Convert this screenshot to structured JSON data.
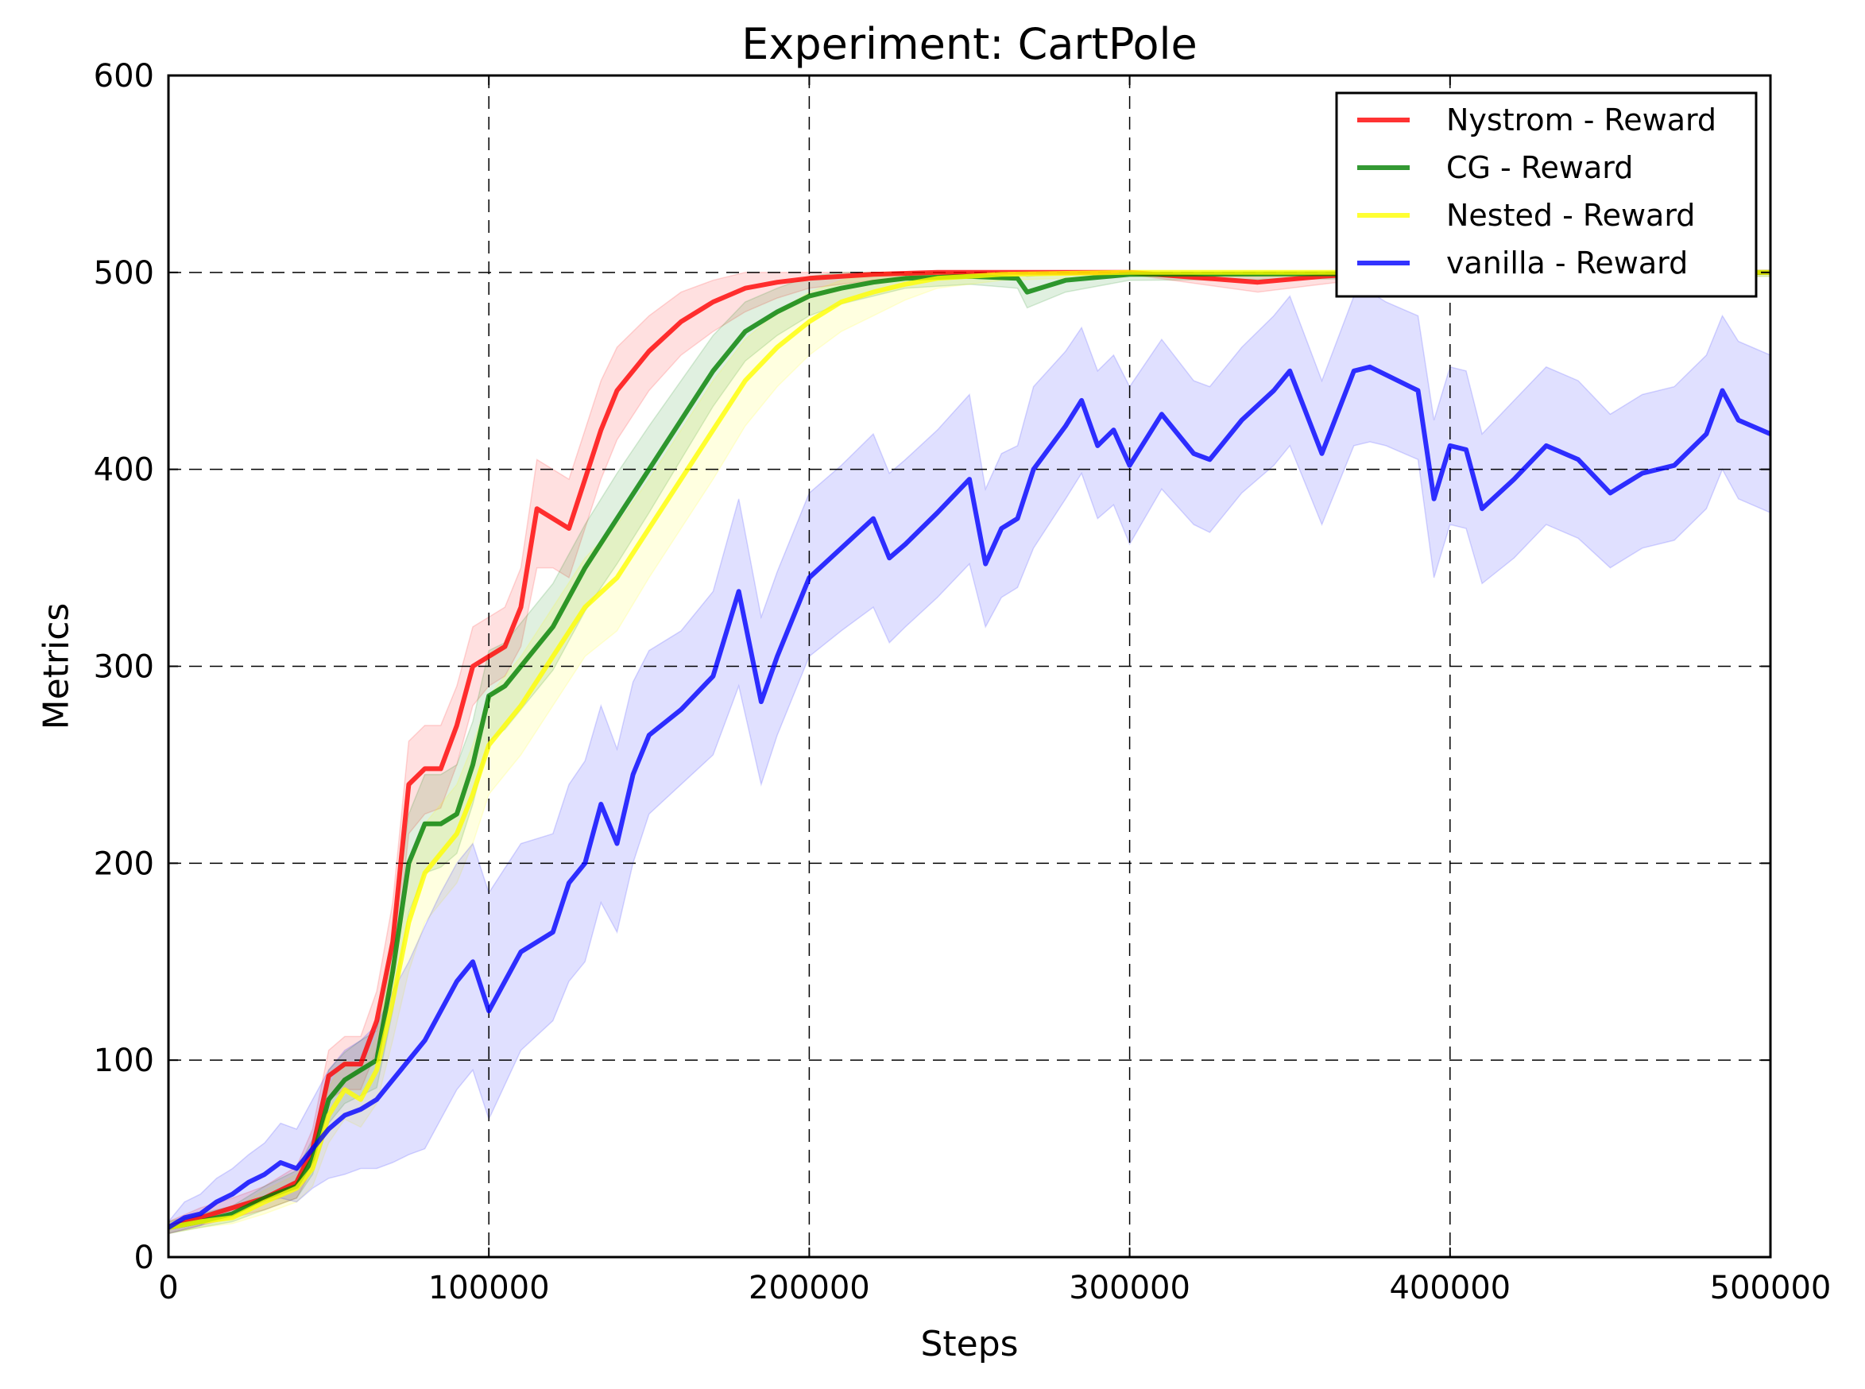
{
  "chart_data": {
    "type": "line",
    "title": "Experiment: CartPole",
    "xlabel": "Steps",
    "ylabel": "Metrics",
    "xlim": [
      0,
      500000
    ],
    "ylim": [
      0,
      600
    ],
    "xticks": [
      0,
      100000,
      200000,
      300000,
      400000,
      500000
    ],
    "xtick_labels": [
      "0",
      "100000",
      "200000",
      "300000",
      "400000",
      "500000"
    ],
    "yticks": [
      0,
      100,
      200,
      300,
      400,
      500,
      600
    ],
    "ytick_labels": [
      "0",
      "100",
      "200",
      "300",
      "400",
      "500",
      "600"
    ],
    "grid": true,
    "legend_position": "top-right",
    "series": [
      {
        "name": "Nystrom - Reward",
        "color": "#ff0000",
        "x": [
          0,
          10000,
          20000,
          30000,
          40000,
          45000,
          50000,
          55000,
          60000,
          65000,
          70000,
          75000,
          80000,
          85000,
          90000,
          95000,
          100000,
          105000,
          110000,
          115000,
          120000,
          125000,
          130000,
          135000,
          140000,
          150000,
          160000,
          170000,
          180000,
          190000,
          200000,
          220000,
          240000,
          300000,
          340000,
          360000,
          380000,
          400000,
          500000
        ],
        "y": [
          15,
          20,
          25,
          30,
          38,
          55,
          92,
          98,
          98,
          120,
          160,
          240,
          248,
          248,
          270,
          300,
          305,
          310,
          330,
          380,
          375,
          370,
          395,
          420,
          440,
          460,
          475,
          485,
          492,
          495,
          497,
          499,
          500,
          500,
          495,
          498,
          500,
          500,
          500
        ],
        "band_low": [
          12,
          16,
          20,
          24,
          30,
          45,
          80,
          85,
          85,
          105,
          140,
          215,
          225,
          228,
          250,
          280,
          290,
          295,
          310,
          350,
          350,
          345,
          370,
          395,
          415,
          440,
          458,
          470,
          480,
          487,
          492,
          496,
          498,
          499,
          490,
          494,
          498,
          499,
          499
        ],
        "band_high": [
          18,
          25,
          30,
          36,
          46,
          65,
          105,
          112,
          112,
          135,
          180,
          262,
          270,
          270,
          290,
          320,
          325,
          330,
          350,
          405,
          400,
          395,
          420,
          445,
          462,
          478,
          490,
          496,
          500,
          500,
          500,
          500,
          500,
          500,
          500,
          500,
          500,
          500,
          500
        ]
      },
      {
        "name": "CG - Reward",
        "color": "#008000",
        "x": [
          0,
          10000,
          20000,
          30000,
          40000,
          45000,
          50000,
          55000,
          60000,
          65000,
          70000,
          75000,
          80000,
          85000,
          90000,
          95000,
          100000,
          105000,
          110000,
          120000,
          130000,
          140000,
          150000,
          160000,
          170000,
          180000,
          190000,
          200000,
          210000,
          220000,
          230000,
          250000,
          265000,
          268000,
          280000,
          300000,
          500000
        ],
        "y": [
          15,
          18,
          22,
          30,
          36,
          50,
          80,
          90,
          95,
          100,
          145,
          200,
          220,
          220,
          225,
          250,
          285,
          290,
          300,
          320,
          350,
          375,
          400,
          425,
          450,
          470,
          480,
          488,
          492,
          495,
          497,
          498,
          497,
          490,
          496,
          499,
          500
        ],
        "band_low": [
          12,
          15,
          18,
          24,
          30,
          42,
          68,
          78,
          82,
          86,
          125,
          175,
          195,
          198,
          205,
          230,
          262,
          268,
          278,
          298,
          328,
          352,
          378,
          405,
          432,
          455,
          468,
          478,
          484,
          488,
          492,
          494,
          492,
          482,
          490,
          496,
          498
        ],
        "band_high": [
          18,
          22,
          26,
          36,
          44,
          60,
          95,
          104,
          110,
          115,
          165,
          225,
          245,
          245,
          250,
          272,
          308,
          312,
          322,
          342,
          372,
          398,
          422,
          445,
          468,
          485,
          492,
          498,
          500,
          500,
          500,
          500,
          500,
          498,
          500,
          500,
          500
        ]
      },
      {
        "name": "Nested - Reward",
        "color": "#ffff00",
        "x": [
          0,
          10000,
          20000,
          30000,
          40000,
          45000,
          50000,
          55000,
          60000,
          65000,
          70000,
          75000,
          80000,
          85000,
          90000,
          95000,
          100000,
          110000,
          120000,
          130000,
          140000,
          150000,
          160000,
          170000,
          180000,
          190000,
          200000,
          210000,
          220000,
          230000,
          240000,
          260000,
          300000,
          500000
        ],
        "y": [
          15,
          18,
          20,
          28,
          35,
          45,
          72,
          85,
          80,
          95,
          130,
          170,
          195,
          205,
          215,
          235,
          260,
          280,
          305,
          330,
          345,
          370,
          395,
          420,
          445,
          462,
          475,
          485,
          490,
          494,
          497,
          499,
          500,
          500
        ],
        "band_low": [
          12,
          15,
          17,
          22,
          28,
          36,
          58,
          70,
          66,
          78,
          110,
          145,
          170,
          180,
          190,
          210,
          235,
          255,
          280,
          305,
          318,
          345,
          370,
          395,
          422,
          442,
          458,
          470,
          478,
          486,
          492,
          496,
          498,
          498
        ],
        "band_high": [
          18,
          22,
          24,
          34,
          42,
          55,
          86,
          100,
          95,
          112,
          150,
          195,
          220,
          230,
          240,
          260,
          285,
          305,
          330,
          355,
          372,
          395,
          420,
          445,
          466,
          480,
          490,
          496,
          500,
          500,
          500,
          500,
          500,
          500
        ]
      },
      {
        "name": "vanilla - Reward",
        "color": "#0000ff",
        "x": [
          0,
          5000,
          10000,
          15000,
          20000,
          25000,
          30000,
          35000,
          40000,
          45000,
          50000,
          55000,
          60000,
          65000,
          70000,
          75000,
          80000,
          85000,
          90000,
          95000,
          100000,
          110000,
          120000,
          125000,
          130000,
          135000,
          140000,
          145000,
          150000,
          160000,
          170000,
          178000,
          185000,
          190000,
          200000,
          210000,
          220000,
          225000,
          230000,
          240000,
          250000,
          255000,
          260000,
          265000,
          270000,
          280000,
          285000,
          290000,
          295000,
          300000,
          310000,
          320000,
          325000,
          335000,
          345000,
          350000,
          360000,
          370000,
          375000,
          380000,
          390000,
          395000,
          400000,
          405000,
          410000,
          420000,
          430000,
          440000,
          450000,
          460000,
          470000,
          480000,
          485000,
          490000,
          500000
        ],
        "y": [
          15,
          20,
          22,
          28,
          32,
          38,
          42,
          48,
          45,
          55,
          65,
          72,
          75,
          80,
          90,
          100,
          110,
          125,
          140,
          150,
          125,
          155,
          165,
          190,
          200,
          230,
          210,
          245,
          265,
          278,
          295,
          338,
          282,
          305,
          345,
          360,
          375,
          355,
          362,
          378,
          395,
          352,
          370,
          375,
          400,
          422,
          435,
          412,
          420,
          402,
          428,
          408,
          405,
          425,
          440,
          450,
          408,
          450,
          452,
          448,
          440,
          385,
          412,
          410,
          380,
          395,
          412,
          405,
          388,
          398,
          402,
          418,
          440,
          425,
          418
        ],
        "band_low": [
          12,
          14,
          16,
          20,
          22,
          26,
          28,
          30,
          28,
          35,
          40,
          42,
          45,
          45,
          48,
          52,
          55,
          70,
          85,
          95,
          70,
          105,
          120,
          140,
          150,
          180,
          165,
          200,
          225,
          240,
          255,
          290,
          240,
          265,
          305,
          318,
          330,
          312,
          320,
          335,
          352,
          320,
          335,
          340,
          360,
          385,
          398,
          375,
          382,
          362,
          390,
          372,
          368,
          388,
          402,
          412,
          372,
          412,
          414,
          412,
          405,
          345,
          372,
          370,
          342,
          355,
          372,
          365,
          350,
          360,
          364,
          380,
          400,
          385,
          378
        ],
        "band_high": [
          18,
          28,
          32,
          40,
          45,
          52,
          58,
          68,
          65,
          80,
          95,
          105,
          110,
          118,
          135,
          150,
          168,
          185,
          200,
          210,
          185,
          210,
          215,
          240,
          252,
          280,
          258,
          292,
          308,
          318,
          338,
          385,
          325,
          348,
          388,
          402,
          418,
          398,
          405,
          420,
          438,
          390,
          408,
          412,
          442,
          460,
          472,
          450,
          458,
          442,
          466,
          445,
          442,
          462,
          478,
          488,
          445,
          488,
          490,
          485,
          478,
          425,
          452,
          450,
          418,
          435,
          452,
          445,
          428,
          438,
          442,
          458,
          478,
          465,
          458
        ]
      }
    ]
  }
}
